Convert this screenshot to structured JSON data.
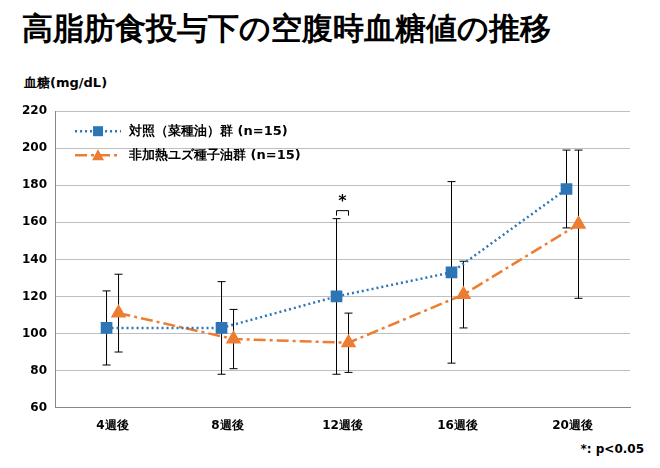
{
  "chart_data": {
    "type": "line",
    "title": "高脂肪食投与下の空腹時血糖値の推移",
    "ylabel": "血糖(mg/dL)",
    "categories": [
      "4週後",
      "8週後",
      "12週後",
      "16週後",
      "20週後"
    ],
    "series": [
      {
        "name": "対照（菜種油）群 (n=15)",
        "color": "#2e75b6",
        "marker": "square",
        "line_style": "dotted",
        "values": [
          103,
          103,
          120,
          133,
          178
        ],
        "errors": [
          20,
          25,
          42,
          49,
          21
        ]
      },
      {
        "name": "非加熱ユズ種子油群 (n=15)",
        "color": "#ed7d31",
        "marker": "triangle",
        "line_style": "dashdot",
        "values": [
          111,
          97,
          95,
          121,
          159
        ],
        "errors": [
          21,
          16,
          16,
          18,
          40
        ]
      }
    ],
    "ylim": [
      60,
      220
    ],
    "yticks": [
      60,
      80,
      100,
      120,
      140,
      160,
      180,
      200,
      220
    ],
    "grid": true,
    "legend": "upper left",
    "annotations": [
      {
        "text": "*",
        "category": "12週後"
      }
    ],
    "note": "*: p<0.05"
  }
}
